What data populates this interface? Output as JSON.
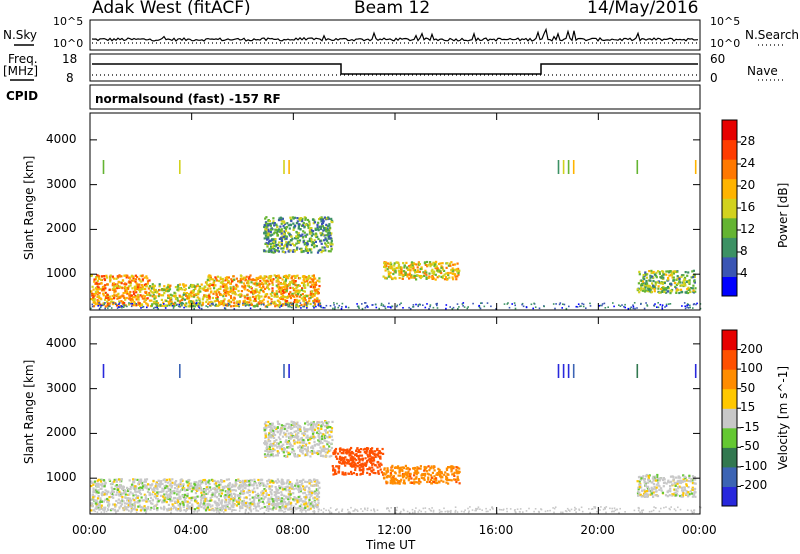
{
  "header": {
    "station": "Adak West (fitACF)",
    "beam": "Beam 12",
    "date": "14/May/2016"
  },
  "noise_panel": {
    "left_label": "N.Sky",
    "right_label": "N.Search",
    "left_ticks": [
      "10^5",
      "10^0"
    ],
    "right_ticks": [
      "10^5",
      "10^0"
    ]
  },
  "freq_panel": {
    "left_label_1": "Freq.",
    "left_label_2": "[MHz]",
    "right_label": "Nave",
    "left_ticks": [
      "18",
      "8"
    ],
    "right_ticks": [
      "60",
      "0"
    ]
  },
  "cpid": {
    "label": "CPID",
    "value": "normalsound (fast) -157 RF"
  },
  "colors": {
    "power_scale": [
      "#0000ff",
      "#3a55b4",
      "#3c9164",
      "#64b432",
      "#d2d21e",
      "#ffb400",
      "#ff7800",
      "#ff3c00",
      "#e60000"
    ],
    "velocity_scale": [
      "#e60000",
      "#ff5000",
      "#ff8c00",
      "#ffc800",
      "#c8c8c8",
      "#64c832",
      "#327850",
      "#3c64b4",
      "#2828dc"
    ]
  },
  "chart_data": [
    {
      "type": "heatmap",
      "name": "power",
      "xlabel": "Time UT",
      "ylabel": "Slant Range [km]",
      "xlim": [
        "00:00",
        "24:00"
      ],
      "ylim": [
        200,
        4600
      ],
      "x_ticks": [
        "00:00",
        "04:00",
        "08:00",
        "12:00",
        "16:00",
        "20:00",
        "00:00"
      ],
      "y_ticks": [
        "1000",
        "2000",
        "3000",
        "4000"
      ],
      "colorbar": {
        "label": "Power [dB]",
        "range": [
          0,
          32
        ],
        "ticks": [
          "4",
          "8",
          "12",
          "16",
          "20",
          "24",
          "28"
        ]
      },
      "scatter_regions": [
        {
          "t_start": 0.0,
          "t_end": 2.3,
          "r_start": 300,
          "r_end": 1000,
          "level": 24
        },
        {
          "t_start": 2.3,
          "t_end": 4.5,
          "r_start": 300,
          "r_end": 800,
          "level": 18
        },
        {
          "t_start": 4.5,
          "t_end": 9.0,
          "r_start": 300,
          "r_end": 1000,
          "level": 22
        },
        {
          "t_start": 6.8,
          "t_end": 9.5,
          "r_start": 1500,
          "r_end": 2300,
          "level": 12
        },
        {
          "t_start": 11.5,
          "t_end": 14.5,
          "r_start": 900,
          "r_end": 1300,
          "level": 20
        },
        {
          "t_start": 21.5,
          "t_end": 23.8,
          "r_start": 600,
          "r_end": 1100,
          "level": 14
        }
      ]
    },
    {
      "type": "heatmap",
      "name": "velocity",
      "xlabel": "Time UT",
      "ylabel": "Slant Range [km]",
      "xlim": [
        "00:00",
        "24:00"
      ],
      "ylim": [
        200,
        4600
      ],
      "x_ticks": [
        "00:00",
        "04:00",
        "08:00",
        "12:00",
        "16:00",
        "20:00",
        "00:00"
      ],
      "y_ticks": [
        "1000",
        "2000",
        "3000",
        "4000"
      ],
      "colorbar": {
        "label": "Velocity [m s^-1]",
        "ticks": [
          "200",
          "100",
          "50",
          "15",
          "-15",
          "-50",
          "-100",
          "-200"
        ]
      },
      "scatter_regions": [
        {
          "t_start": 0.0,
          "t_end": 9.0,
          "r_start": 300,
          "r_end": 1000,
          "velocity": 0
        },
        {
          "t_start": 6.8,
          "t_end": 9.5,
          "r_start": 1500,
          "r_end": 2300,
          "velocity": 0
        },
        {
          "t_start": 9.5,
          "t_end": 11.5,
          "r_start": 1100,
          "r_end": 1700,
          "velocity": -120
        },
        {
          "t_start": 11.5,
          "t_end": 14.5,
          "r_start": 900,
          "r_end": 1300,
          "velocity": -60
        },
        {
          "t_start": 21.5,
          "t_end": 23.8,
          "r_start": 600,
          "r_end": 1100,
          "velocity": 0
        }
      ]
    }
  ]
}
